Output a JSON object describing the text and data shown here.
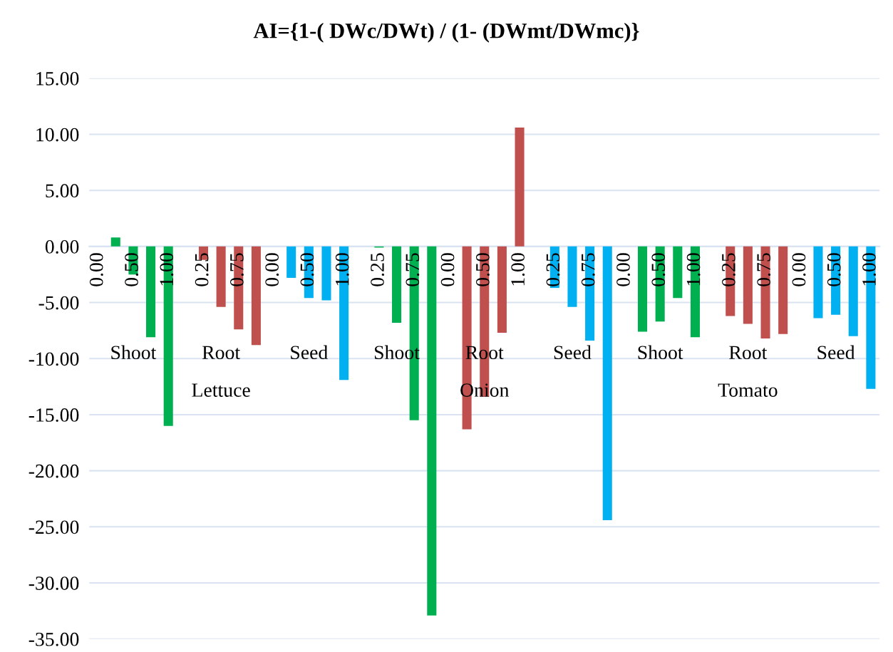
{
  "chart_data": {
    "type": "bar",
    "title": "AI={1-( DWc/DWt) / (1- (DWmt/DWmc)}",
    "categories": [
      "0.00",
      null,
      "0.50",
      null,
      "1.00",
      null,
      "0.25",
      null,
      "0.75",
      null,
      "0.00",
      null,
      "0.50",
      null,
      "1.00",
      null,
      "0.25",
      null,
      "0.75",
      null,
      "0.00",
      null,
      "0.50",
      null,
      "1.00",
      null,
      "0.25",
      null,
      "0.75",
      null,
      "0.00",
      null,
      "0.50",
      null,
      "1.00",
      null,
      "0.25",
      null,
      "0.75",
      null,
      "0.00",
      null,
      "0.50",
      null,
      "1.00"
    ],
    "values": [
      0,
      0.8,
      -2.5,
      -8.1,
      -16.0,
      0,
      -1.2,
      -5.4,
      -7.4,
      -8.8,
      0,
      -2.8,
      -4.6,
      -4.8,
      -11.9,
      0,
      -0.1,
      -6.8,
      -15.5,
      -32.9,
      0,
      -16.3,
      -13.4,
      -7.7,
      10.6,
      0,
      -3.7,
      -5.4,
      -8.4,
      -24.4,
      0,
      -7.6,
      -6.7,
      -4.6,
      -8.1,
      0,
      -6.2,
      -6.9,
      -8.2,
      -7.8,
      0,
      -6.4,
      -6.1,
      -8.0,
      -12.7
    ],
    "colors": [
      "#00b050",
      "#00b050",
      "#00b050",
      "#00b050",
      "#00b050",
      "#c0504d",
      "#c0504d",
      "#c0504d",
      "#c0504d",
      "#c0504d",
      "#00b0f0",
      "#00b0f0",
      "#00b0f0",
      "#00b0f0",
      "#00b0f0",
      "#00b050",
      "#00b050",
      "#00b050",
      "#00b050",
      "#00b050",
      "#c0504d",
      "#c0504d",
      "#c0504d",
      "#c0504d",
      "#c0504d",
      "#00b0f0",
      "#00b0f0",
      "#00b0f0",
      "#00b0f0",
      "#00b0f0",
      "#00b050",
      "#00b050",
      "#00b050",
      "#00b050",
      "#00b050",
      "#c0504d",
      "#c0504d",
      "#c0504d",
      "#c0504d",
      "#c0504d",
      "#00b0f0",
      "#00b0f0",
      "#00b0f0",
      "#00b0f0",
      "#00b0f0"
    ],
    "annotations": [
      "Shoot",
      "Root",
      "Seed",
      "Shoot",
      "Root",
      "Seed",
      "Shoot",
      "Root",
      "Seed",
      "Lettuce",
      "Onion",
      "Tomato"
    ],
    "ylim": [
      -35,
      15
    ],
    "yticks": [
      {
        "value": -35,
        "label": "-35.00"
      },
      {
        "value": -30,
        "label": "-30.00"
      },
      {
        "value": -25,
        "label": "-25.00"
      },
      {
        "value": -20,
        "label": "-20.00"
      },
      {
        "value": -15,
        "label": "-15.00"
      },
      {
        "value": -10,
        "label": "-10.00"
      },
      {
        "value": -5,
        "label": "-5.00"
      },
      {
        "value": 0,
        "label": "0.00"
      },
      {
        "value": 5,
        "label": "5.00"
      },
      {
        "value": 10,
        "label": "10.00"
      },
      {
        "value": 15,
        "label": "15.00"
      }
    ],
    "grid": "y"
  }
}
